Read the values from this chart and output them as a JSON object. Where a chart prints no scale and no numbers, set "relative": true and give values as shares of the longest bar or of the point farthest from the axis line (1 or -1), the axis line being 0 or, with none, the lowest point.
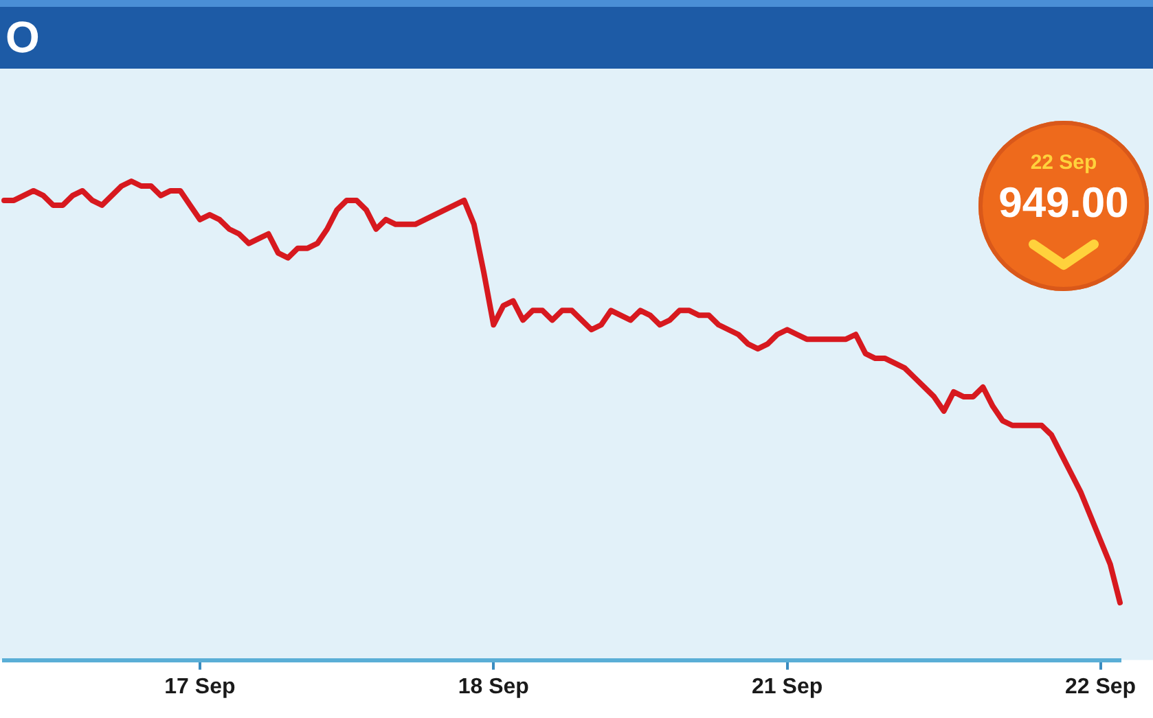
{
  "chart_data": {
    "type": "line",
    "title": "O",
    "categories": [
      null,
      null,
      null,
      null,
      null,
      null,
      null,
      null,
      null,
      null,
      null,
      null,
      null,
      null,
      null,
      null,
      null,
      null,
      null,
      null,
      "17 Sep",
      null,
      null,
      null,
      null,
      null,
      null,
      null,
      null,
      null,
      null,
      null,
      null,
      null,
      null,
      null,
      null,
      null,
      null,
      null,
      null,
      null,
      null,
      null,
      null,
      null,
      null,
      null,
      null,
      null,
      "18 Sep",
      null,
      null,
      null,
      null,
      null,
      null,
      null,
      null,
      null,
      null,
      null,
      null,
      null,
      null,
      null,
      null,
      null,
      null,
      null,
      null,
      null,
      null,
      null,
      null,
      null,
      null,
      null,
      null,
      null,
      "21 Sep",
      null,
      null,
      null,
      null,
      null,
      null,
      null,
      null,
      null,
      null,
      null,
      null,
      null,
      null,
      null,
      null,
      null,
      null,
      null,
      null,
      null,
      null,
      null,
      null,
      null,
      null,
      null,
      null,
      null,
      null,
      null,
      "22 Sep",
      null,
      null
    ],
    "series": [
      {
        "color": "#d7191f",
        "values": [
          0.96,
          0.96,
          0.97,
          0.98,
          0.97,
          0.95,
          0.95,
          0.97,
          0.98,
          0.96,
          0.95,
          0.97,
          0.99,
          1.0,
          0.99,
          0.99,
          0.97,
          0.98,
          0.98,
          0.95,
          0.92,
          0.93,
          0.92,
          0.9,
          0.89,
          0.87,
          0.88,
          0.89,
          0.85,
          0.84,
          0.86,
          0.86,
          0.87,
          0.9,
          0.94,
          0.96,
          0.96,
          0.94,
          0.9,
          0.92,
          0.91,
          0.91,
          0.91,
          0.92,
          0.93,
          0.94,
          0.95,
          0.96,
          0.91,
          0.81,
          0.7,
          0.74,
          0.75,
          0.71,
          0.73,
          0.73,
          0.71,
          0.73,
          0.73,
          0.71,
          0.69,
          0.7,
          0.73,
          0.72,
          0.71,
          0.73,
          0.72,
          0.7,
          0.71,
          0.73,
          0.73,
          0.72,
          0.72,
          0.7,
          0.69,
          0.68,
          0.66,
          0.65,
          0.66,
          0.68,
          0.69,
          0.68,
          0.67,
          0.67,
          0.67,
          0.67,
          0.67,
          0.68,
          0.64,
          0.63,
          0.63,
          0.62,
          0.61,
          0.59,
          0.57,
          0.55,
          0.52,
          0.56,
          0.55,
          0.55,
          0.57,
          0.53,
          0.5,
          0.49,
          0.49,
          0.49,
          0.49,
          0.47,
          0.43,
          0.39,
          0.35,
          0.3,
          0.25,
          0.2,
          0.12
        ]
      }
    ],
    "relative": true,
    "annotations": [
      "22 Sep",
      "949.00"
    ]
  }
}
